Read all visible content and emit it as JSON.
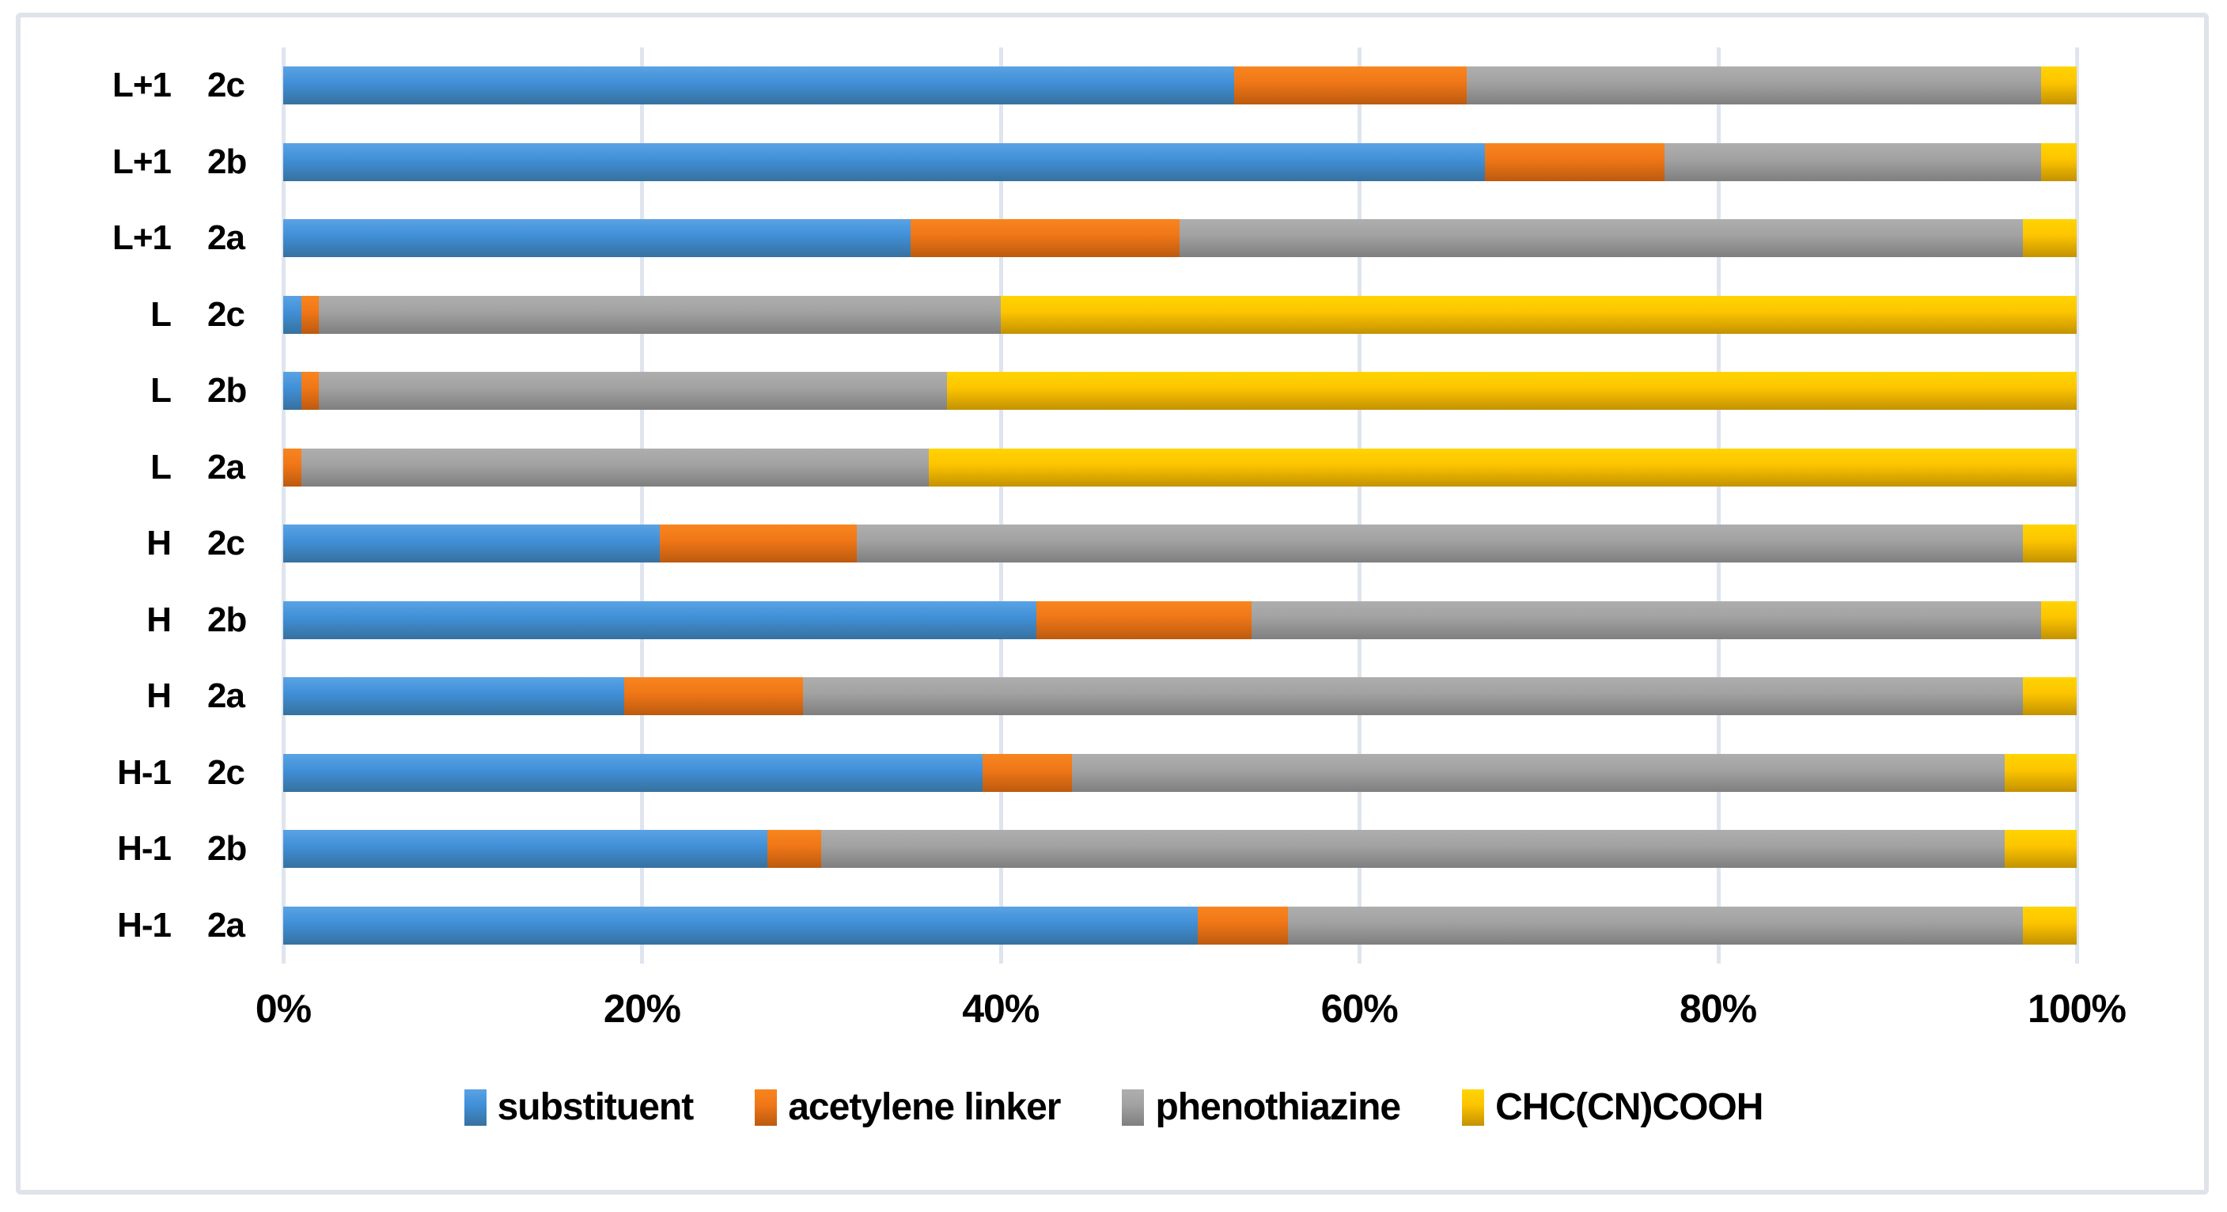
{
  "chart_data": {
    "type": "bar",
    "orientation": "horizontal-stacked",
    "title": "",
    "xlabel": "",
    "ylabel": "",
    "xlim": [
      0,
      100
    ],
    "x_ticks": [
      "0%",
      "20%",
      "40%",
      "60%",
      "80%",
      "100%"
    ],
    "grid": true,
    "legend_position": "bottom",
    "categories": [
      {
        "group": "L+1",
        "item": "2c"
      },
      {
        "group": "L+1",
        "item": "2b"
      },
      {
        "group": "L+1",
        "item": "2a"
      },
      {
        "group": "L",
        "item": "2c"
      },
      {
        "group": "L",
        "item": "2b"
      },
      {
        "group": "L",
        "item": "2a"
      },
      {
        "group": "H",
        "item": "2c"
      },
      {
        "group": "H",
        "item": "2b"
      },
      {
        "group": "H",
        "item": "2a"
      },
      {
        "group": "H-1",
        "item": "2c"
      },
      {
        "group": "H-1",
        "item": "2b"
      },
      {
        "group": "H-1",
        "item": "2a"
      }
    ],
    "series": [
      {
        "name": "substituent",
        "color": "#4190d8",
        "gradient": [
          "#5aa2e4",
          "#4190d8",
          "#36719f"
        ],
        "values": [
          53,
          67,
          35,
          1,
          1,
          0,
          21,
          42,
          19,
          39,
          27,
          51
        ]
      },
      {
        "name": "acetylene linker",
        "color": "#f07717",
        "gradient": [
          "#f8851f",
          "#f07717",
          "#bc5a0f"
        ],
        "values": [
          13,
          10,
          15,
          1,
          1,
          1,
          11,
          12,
          10,
          5,
          3,
          5
        ]
      },
      {
        "name": "phenothiazine",
        "color": "#a2a2a2",
        "gradient": [
          "#aeaeae",
          "#a2a2a2",
          "#7f7f7f"
        ],
        "values": [
          32,
          21,
          47,
          38,
          35,
          35,
          65,
          44,
          68,
          52,
          66,
          41
        ]
      },
      {
        "name": "CHC(CN)COOH",
        "color": "#fdc500",
        "gradient": [
          "#ffd400",
          "#fdc500",
          "#c39200"
        ],
        "values": [
          2,
          2,
          3,
          60,
          63,
          64,
          3,
          2,
          3,
          4,
          4,
          3
        ]
      }
    ],
    "colors": {
      "frame_border": "#dfe3ea",
      "gridline": "#dfe5ee",
      "text": "#000000",
      "background": "#ffffff"
    }
  }
}
